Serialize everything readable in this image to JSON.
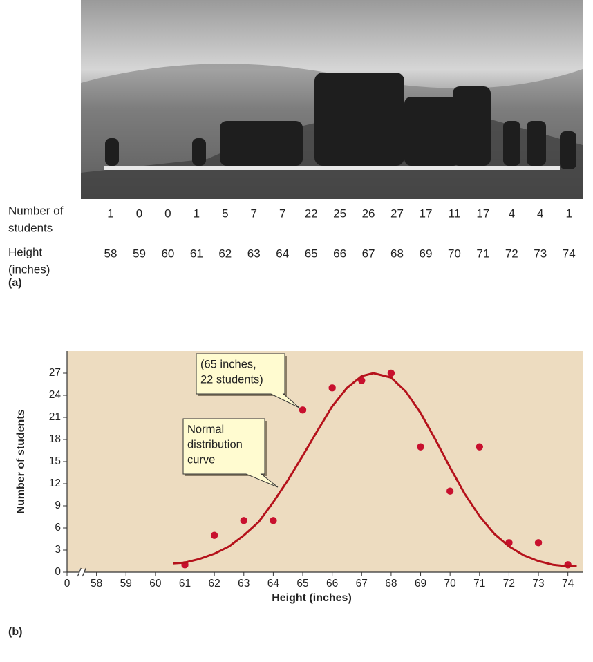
{
  "table": {
    "count_label": [
      "Number of",
      "students"
    ],
    "height_label": [
      "Height",
      "(inches)"
    ],
    "counts": [
      1,
      0,
      0,
      1,
      5,
      7,
      7,
      22,
      25,
      26,
      27,
      17,
      11,
      17,
      4,
      4,
      1
    ],
    "heights": [
      58,
      59,
      60,
      61,
      62,
      63,
      64,
      65,
      66,
      67,
      68,
      69,
      70,
      71,
      72,
      73,
      74
    ]
  },
  "panel_a_label": "(a)",
  "panel_b_label": "(b)",
  "chart_data": {
    "type": "scatter",
    "x_label": "Height (inches)",
    "y_label": "Number of students",
    "xlim": [
      0,
      74.5
    ],
    "ylim": [
      0,
      30
    ],
    "x_axis_break": true,
    "xticks": [
      0,
      58,
      59,
      60,
      61,
      62,
      63,
      64,
      65,
      66,
      67,
      68,
      69,
      70,
      71,
      72,
      73,
      74
    ],
    "yticks": [
      0,
      3,
      6,
      9,
      12,
      15,
      18,
      21,
      24,
      27
    ],
    "background": "#eddcc0",
    "series": [
      {
        "type": "scatter",
        "color": "#c8102e",
        "x": [
          61,
          62,
          63,
          64,
          65,
          66,
          67,
          68,
          69,
          70,
          71,
          72,
          73,
          74
        ],
        "values": [
          1,
          5,
          7,
          7,
          22,
          25,
          26,
          27,
          17,
          11,
          17,
          4,
          4,
          1
        ]
      },
      {
        "type": "line",
        "color": "#b5121b",
        "x": [
          60.6,
          61,
          61.5,
          62,
          62.5,
          63,
          63.5,
          64,
          64.5,
          65,
          65.5,
          66,
          66.5,
          67,
          67.4,
          68,
          68.5,
          69,
          69.5,
          70,
          70.5,
          71,
          71.5,
          72,
          72.5,
          73,
          73.5,
          74,
          74.3
        ],
        "values": [
          1.2,
          1.3,
          1.8,
          2.5,
          3.5,
          5,
          6.8,
          9.5,
          12.5,
          15.8,
          19.2,
          22.5,
          25,
          26.6,
          27,
          26.4,
          24.5,
          21.6,
          18,
          14.2,
          10.6,
          7.6,
          5.2,
          3.5,
          2.3,
          1.5,
          1,
          0.8,
          0.8
        ]
      }
    ],
    "annotations": [
      {
        "lines": [
          "(65 inches,",
          "22 students)"
        ]
      },
      {
        "lines": [
          "Normal",
          "distribution",
          "curve"
        ]
      }
    ]
  }
}
